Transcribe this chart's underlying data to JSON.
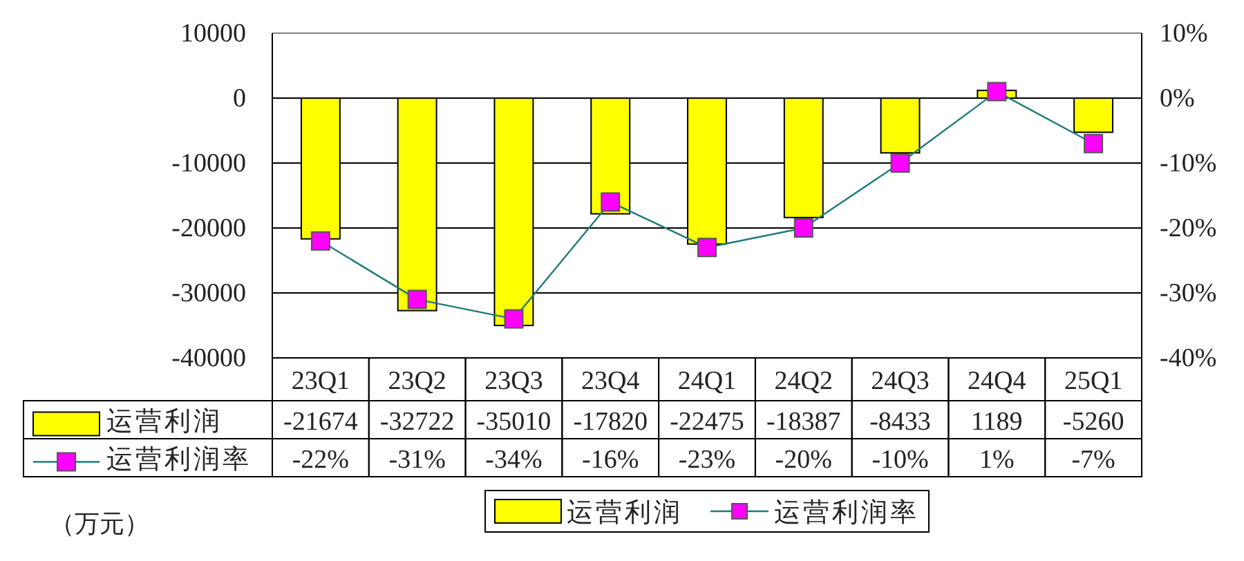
{
  "chart_data": {
    "type": "bar",
    "categories": [
      "23Q1",
      "23Q2",
      "23Q3",
      "23Q4",
      "24Q1",
      "24Q2",
      "24Q3",
      "24Q4",
      "25Q1"
    ],
    "series": [
      {
        "name": "运营利润",
        "color": "#ffff00",
        "values": [
          -21674,
          -32722,
          -35010,
          -17820,
          -22475,
          -18387,
          -8433,
          1189,
          -5260
        ],
        "value_labels": [
          "-21674",
          "-32722",
          "-35010",
          "-17820",
          "-22475",
          "-18387",
          "-8433",
          "1189",
          "-5260"
        ]
      },
      {
        "name": "运营利润率",
        "type": "line",
        "axis": "y2",
        "color": "#1f7a7a",
        "colors": [
          "#ff00ff",
          "#ff00ff",
          "#ff00ff",
          "#ff00ff",
          "#ff00ff",
          "#ff00ff",
          "#ff00ff",
          "#ff00ff",
          "#ff00ff"
        ],
        "values": [
          -22,
          -31,
          -34,
          -16,
          -23,
          -20,
          -10,
          1,
          -7
        ],
        "value_labels": [
          "-22%",
          "-31%",
          "-34%",
          "-16%",
          "-23%",
          "-20%",
          "-10%",
          "1%",
          "-7%"
        ]
      }
    ],
    "ylim": [
      -40000,
      10000
    ],
    "yticks": [
      -40000,
      -30000,
      -20000,
      -10000,
      0,
      10000
    ],
    "y2lim": [
      -40,
      10
    ],
    "y2ticks": [
      {
        "value": -40,
        "label": "-40%"
      },
      {
        "value": -30,
        "label": "-30%"
      },
      {
        "value": -20,
        "label": "-20%"
      },
      {
        "value": -10,
        "label": "-10%"
      },
      {
        "value": 0,
        "label": "0%"
      },
      {
        "value": 10,
        "label": "10%"
      }
    ],
    "grid": "y",
    "legend": "bottom",
    "marker": "square",
    "line_style": "solid",
    "annotations": [
      "（万元）"
    ]
  }
}
